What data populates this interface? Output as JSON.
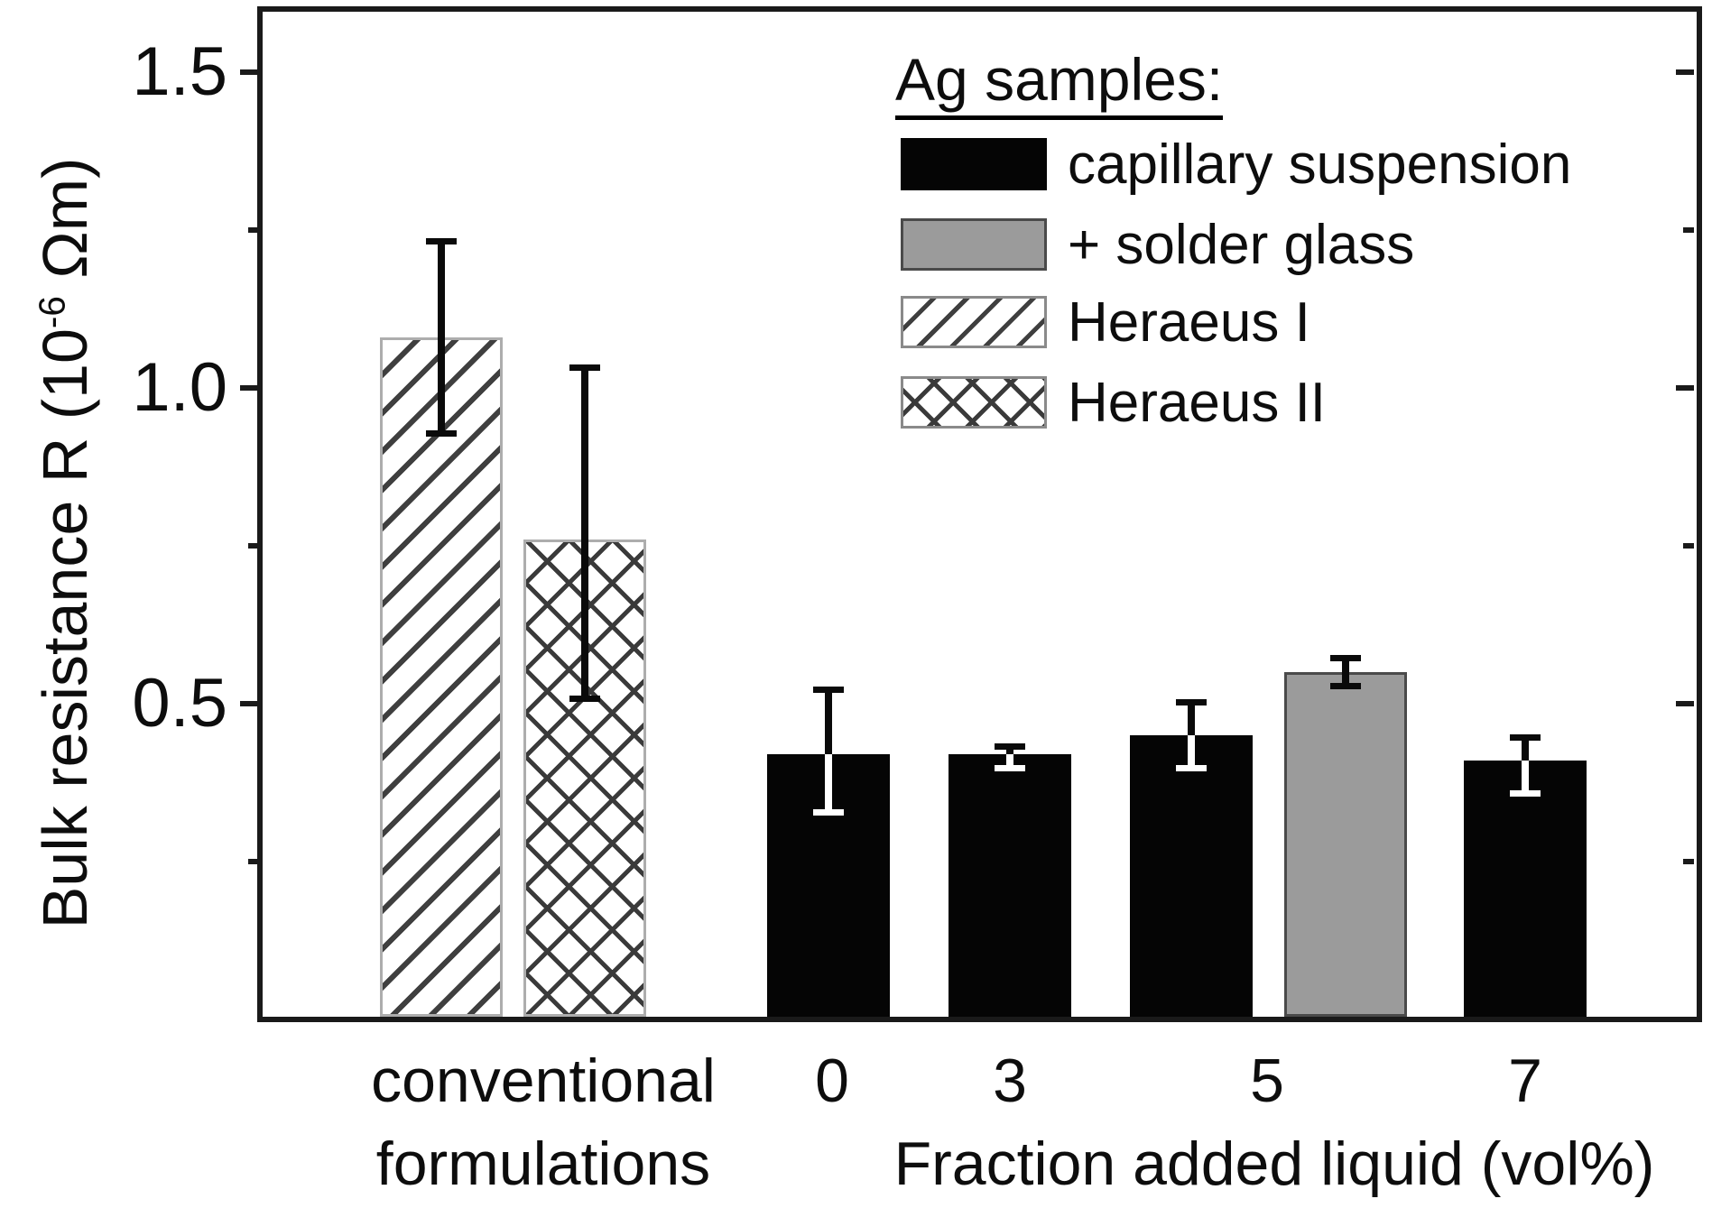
{
  "chart_data": {
    "type": "bar",
    "title": "",
    "ylabel_prefix": "Bulk resistance R (10",
    "ylabel_sup": "-6",
    "ylabel_suffix": " Ωm)",
    "xlabel": "Fraction added liquid (vol%)",
    "x_group_label_line1": "conventional",
    "x_group_label_line2": "formulations",
    "x_tick_labels": [
      "0",
      "3",
      "5",
      "7"
    ],
    "ylim": [
      0,
      1.6
    ],
    "grid": false,
    "legend_position": "upper right",
    "yticks": [
      {
        "value": 0.5,
        "label": "0.5"
      },
      {
        "value": 1.0,
        "label": "1.0"
      },
      {
        "value": 1.5,
        "label": "1.5"
      }
    ],
    "yticks_minor": [
      0.25,
      0.75,
      1.25
    ],
    "legend": {
      "title": "Ag samples:",
      "items": [
        {
          "label": "capillary suspension",
          "swatch": "black"
        },
        {
          "label": "+ solder glass",
          "swatch": "gray"
        },
        {
          "label": "Heraeus I",
          "swatch": "hatch-diagonal"
        },
        {
          "label": "Heraeus II",
          "swatch": "hatch-cross"
        }
      ]
    },
    "bars": [
      {
        "name": "Heraeus I",
        "category": "conventional formulations",
        "style": "hatch-diagonal",
        "value": 1.08,
        "err_high": 1.23,
        "err_low": 0.93
      },
      {
        "name": "Heraeus II",
        "category": "conventional formulations",
        "style": "hatch-cross",
        "value": 0.76,
        "err_high": 1.03,
        "err_low": 0.51
      },
      {
        "name": "capillary suspension 0 vol%",
        "category": "0",
        "style": "black",
        "value": 0.42,
        "err_high": 0.52,
        "err_low": 0.33
      },
      {
        "name": "capillary suspension 3 vol%",
        "category": "3",
        "style": "black",
        "value": 0.42,
        "err_high": 0.43,
        "err_low": 0.4
      },
      {
        "name": "capillary suspension 5 vol%",
        "category": "5",
        "style": "black",
        "value": 0.45,
        "err_high": 0.5,
        "err_low": 0.4
      },
      {
        "name": "capillary suspension + solder glass 5 vol%",
        "category": "5",
        "style": "gray",
        "value": 0.55,
        "err_high": 0.57,
        "err_low": 0.53
      },
      {
        "name": "capillary suspension 7 vol%",
        "category": "7",
        "style": "black",
        "value": 0.41,
        "err_high": 0.445,
        "err_low": 0.36
      }
    ],
    "colors": {
      "black_bar": "#050505",
      "gray_bar": "#9b9b9b",
      "hatch_line": "#3f3f3f",
      "frame": "#1a1a1a",
      "text": "#0d0d0d"
    }
  }
}
